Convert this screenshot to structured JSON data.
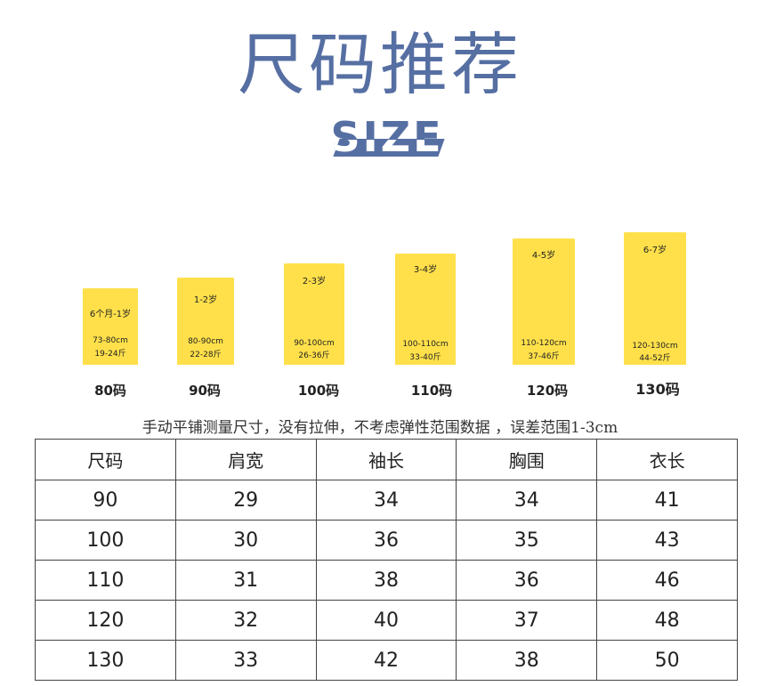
{
  "header": {
    "title": "尺码推荐",
    "subtitle": "SIZE"
  },
  "tags": [
    {
      "age": "6个月-1岁",
      "height": "73-80cm",
      "weight": "19-24斤",
      "size": "80码"
    },
    {
      "age": "1-2岁",
      "height": "80-90cm",
      "weight": "22-28斤",
      "size": "90码"
    },
    {
      "age": "2-3岁",
      "height": "90-100cm",
      "weight": "26-36斤",
      "size": "100码"
    },
    {
      "age": "3-4岁",
      "height": "100-110cm",
      "weight": "33-40斤",
      "size": "110码"
    },
    {
      "age": "4-5岁",
      "height": "110-120cm",
      "weight": "37-46斤",
      "size": "120码"
    },
    {
      "age": "6-7岁",
      "height": "120-130cm",
      "weight": "44-52斤",
      "size": "130码"
    }
  ],
  "note": "手动平铺测量尺寸，没有拉伸，不考虑弹性范围数据 ，误差范围1-3cm",
  "table": {
    "headers": [
      "尺码",
      "肩宽",
      "袖长",
      "胸围",
      "衣长"
    ],
    "rows": [
      [
        "90",
        "29",
        "34",
        "34",
        "41"
      ],
      [
        "100",
        "30",
        "36",
        "35",
        "43"
      ],
      [
        "110",
        "31",
        "38",
        "36",
        "46"
      ],
      [
        "120",
        "32",
        "40",
        "37",
        "48"
      ],
      [
        "130",
        "33",
        "42",
        "38",
        "50"
      ]
    ]
  },
  "colors": {
    "title": "#566fa3",
    "tag": "#ffe04a"
  }
}
